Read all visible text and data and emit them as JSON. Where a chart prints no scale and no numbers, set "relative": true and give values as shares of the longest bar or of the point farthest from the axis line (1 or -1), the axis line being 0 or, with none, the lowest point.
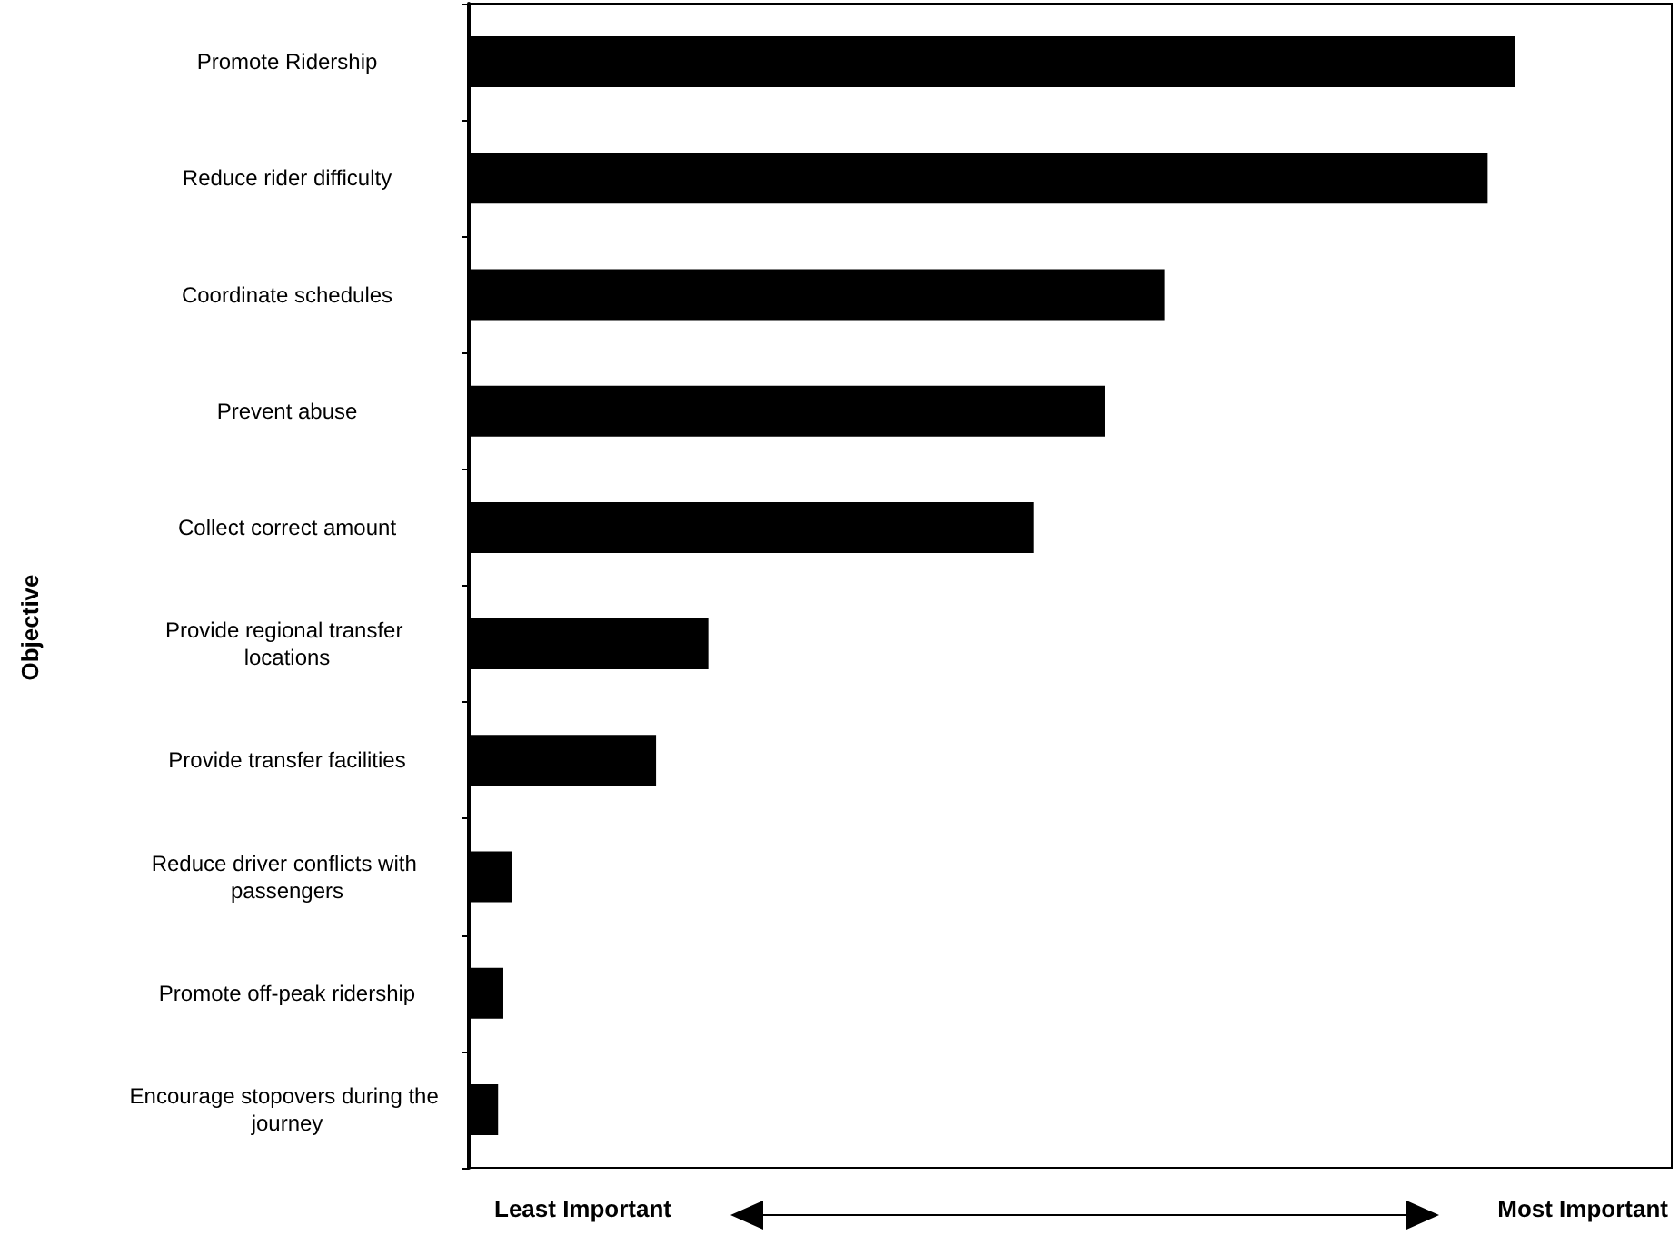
{
  "chart_data": {
    "type": "bar",
    "orientation": "horizontal",
    "relative": true,
    "ylabel": "Objective",
    "categories": [
      "Promote Ridership",
      "Reduce rider difficulty",
      "Coordinate schedules",
      "Prevent abuse",
      "Collect correct amount",
      "Provide regional transfer locations",
      "Provide transfer facilities",
      "Reduce driver conflicts with passengers",
      "Promote off-peak ridership",
      "Encourage stopovers during the journey"
    ],
    "values": [
      1,
      0.974,
      0.665,
      0.608,
      0.54,
      0.229,
      0.179,
      0.041,
      0.033,
      0.028
    ],
    "color": "#000000",
    "annotations": [
      "Least Important",
      "Most Important"
    ]
  }
}
